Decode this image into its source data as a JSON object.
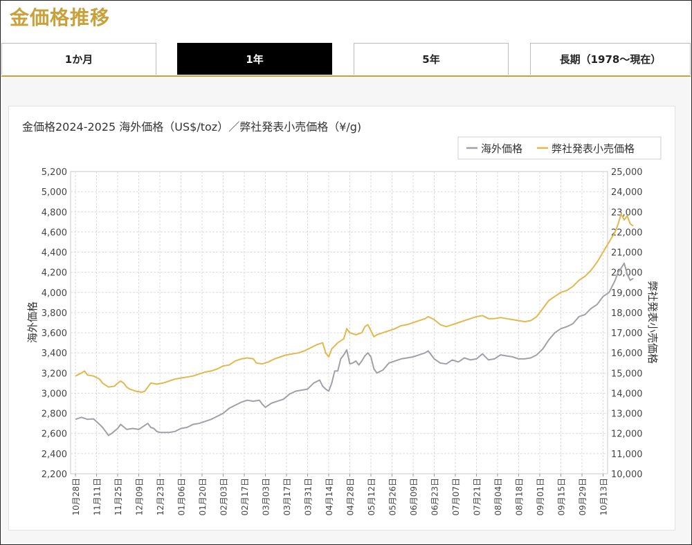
{
  "page": {
    "title": "金価格推移"
  },
  "tabs": [
    {
      "label": "1か月",
      "active": false
    },
    {
      "label": "1年",
      "active": true
    },
    {
      "label": "5年",
      "active": false
    },
    {
      "label": "長期（1978〜現在）",
      "active": false
    }
  ],
  "colors": {
    "accent": "#c9a13b",
    "overseas": "#a0a0a8",
    "retail": "#e2b84e",
    "grid": "#dcdcdc"
  },
  "chart_data": {
    "type": "line",
    "title": "金価格2024-2025 海外価格（US$/toz）／弊社発表小売価格（¥/g)",
    "legend": {
      "position": "top-right"
    },
    "grid": true,
    "x_ticks": [
      "10月28日",
      "11月11日",
      "11月25日",
      "12月09日",
      "12月23日",
      "01月06日",
      "01月20日",
      "02月03日",
      "02月17日",
      "03月03日",
      "03月17日",
      "03月31日",
      "04月14日",
      "04月28日",
      "05月12日",
      "05月26日",
      "06月09日",
      "06月23日",
      "07月07日",
      "07月21日",
      "08月04日",
      "08月18日",
      "09月01日",
      "09月15日",
      "09月29日",
      "10月13日"
    ],
    "y_left": {
      "label": "海外価格",
      "min": 2200,
      "max": 5200,
      "ticks": [
        "2,200",
        "2,400",
        "2,600",
        "2,800",
        "3,000",
        "3,200",
        "3,400",
        "3,600",
        "3,800",
        "4,000",
        "4,200",
        "4,400",
        "4,600",
        "4,800",
        "5,000",
        "5,200"
      ]
    },
    "y_right": {
      "label": "弊社発表小売価格",
      "min": 10000,
      "max": 25000,
      "ticks": [
        "10,000",
        "11,000",
        "12,000",
        "13,000",
        "14,000",
        "15,000",
        "16,000",
        "17,000",
        "18,000",
        "19,000",
        "20,000",
        "21,000",
        "22,000",
        "23,000",
        "24,000",
        "25,000"
      ]
    },
    "series": [
      {
        "name": "海外価格",
        "axis": "left",
        "points": [
          [
            0,
            2740
          ],
          [
            2,
            2760
          ],
          [
            4,
            2740
          ],
          [
            6,
            2745
          ],
          [
            8,
            2690
          ],
          [
            9,
            2660
          ],
          [
            10,
            2620
          ],
          [
            11,
            2580
          ],
          [
            12,
            2600
          ],
          [
            14,
            2650
          ],
          [
            15,
            2690
          ],
          [
            17,
            2640
          ],
          [
            19,
            2650
          ],
          [
            21,
            2640
          ],
          [
            23,
            2680
          ],
          [
            24,
            2700
          ],
          [
            25,
            2660
          ],
          [
            26,
            2650
          ],
          [
            27,
            2620
          ],
          [
            28,
            2610
          ],
          [
            31,
            2610
          ],
          [
            33,
            2620
          ],
          [
            35,
            2650
          ],
          [
            37,
            2660
          ],
          [
            39,
            2690
          ],
          [
            41,
            2700
          ],
          [
            43,
            2720
          ],
          [
            45,
            2740
          ],
          [
            47,
            2770
          ],
          [
            49,
            2800
          ],
          [
            51,
            2850
          ],
          [
            53,
            2880
          ],
          [
            55,
            2910
          ],
          [
            57,
            2930
          ],
          [
            59,
            2920
          ],
          [
            61,
            2930
          ],
          [
            62,
            2890
          ],
          [
            63,
            2860
          ],
          [
            65,
            2900
          ],
          [
            67,
            2920
          ],
          [
            69,
            2940
          ],
          [
            71,
            2990
          ],
          [
            73,
            3020
          ],
          [
            75,
            3030
          ],
          [
            77,
            3040
          ],
          [
            79,
            3100
          ],
          [
            81,
            3130
          ],
          [
            82,
            3070
          ],
          [
            83,
            3040
          ],
          [
            84,
            3020
          ],
          [
            85,
            3100
          ],
          [
            86,
            3220
          ],
          [
            87,
            3220
          ],
          [
            88,
            3340
          ],
          [
            89,
            3380
          ],
          [
            90,
            3430
          ],
          [
            91,
            3290
          ],
          [
            92,
            3300
          ],
          [
            93,
            3320
          ],
          [
            94,
            3280
          ],
          [
            95,
            3320
          ],
          [
            96,
            3370
          ],
          [
            97,
            3400
          ],
          [
            98,
            3360
          ],
          [
            99,
            3240
          ],
          [
            100,
            3200
          ],
          [
            102,
            3230
          ],
          [
            104,
            3300
          ],
          [
            106,
            3320
          ],
          [
            108,
            3340
          ],
          [
            110,
            3350
          ],
          [
            112,
            3360
          ],
          [
            114,
            3380
          ],
          [
            116,
            3400
          ],
          [
            117,
            3420
          ],
          [
            119,
            3340
          ],
          [
            121,
            3300
          ],
          [
            123,
            3290
          ],
          [
            125,
            3330
          ],
          [
            127,
            3310
          ],
          [
            129,
            3350
          ],
          [
            131,
            3330
          ],
          [
            133,
            3340
          ],
          [
            135,
            3390
          ],
          [
            137,
            3330
          ],
          [
            139,
            3340
          ],
          [
            141,
            3380
          ],
          [
            143,
            3370
          ],
          [
            145,
            3360
          ],
          [
            147,
            3340
          ],
          [
            149,
            3340
          ],
          [
            151,
            3350
          ],
          [
            153,
            3380
          ],
          [
            155,
            3440
          ],
          [
            157,
            3530
          ],
          [
            159,
            3600
          ],
          [
            161,
            3640
          ],
          [
            163,
            3660
          ],
          [
            165,
            3690
          ],
          [
            167,
            3760
          ],
          [
            169,
            3780
          ],
          [
            171,
            3840
          ],
          [
            173,
            3880
          ],
          [
            175,
            3960
          ],
          [
            177,
            4000
          ],
          [
            179,
            4120
          ],
          [
            180,
            4200
          ],
          [
            181,
            4240
          ],
          [
            182,
            4290
          ],
          [
            183,
            4180
          ],
          [
            184,
            4120
          ],
          [
            185,
            4140
          ]
        ]
      },
      {
        "name": "弊社発表小売価格",
        "axis": "right",
        "points": [
          [
            0,
            14850
          ],
          [
            2,
            15000
          ],
          [
            3,
            15100
          ],
          [
            4,
            14900
          ],
          [
            6,
            14850
          ],
          [
            8,
            14700
          ],
          [
            9,
            14500
          ],
          [
            11,
            14300
          ],
          [
            13,
            14350
          ],
          [
            14,
            14500
          ],
          [
            15,
            14600
          ],
          [
            16,
            14500
          ],
          [
            17,
            14300
          ],
          [
            18,
            14200
          ],
          [
            20,
            14100
          ],
          [
            22,
            14050
          ],
          [
            23,
            14100
          ],
          [
            24,
            14300
          ],
          [
            25,
            14500
          ],
          [
            27,
            14450
          ],
          [
            29,
            14500
          ],
          [
            31,
            14600
          ],
          [
            33,
            14700
          ],
          [
            35,
            14750
          ],
          [
            37,
            14800
          ],
          [
            39,
            14850
          ],
          [
            41,
            14950
          ],
          [
            43,
            15050
          ],
          [
            45,
            15100
          ],
          [
            47,
            15200
          ],
          [
            49,
            15350
          ],
          [
            51,
            15400
          ],
          [
            53,
            15600
          ],
          [
            55,
            15700
          ],
          [
            57,
            15750
          ],
          [
            59,
            15700
          ],
          [
            60,
            15500
          ],
          [
            62,
            15450
          ],
          [
            64,
            15550
          ],
          [
            66,
            15700
          ],
          [
            68,
            15800
          ],
          [
            70,
            15900
          ],
          [
            72,
            15950
          ],
          [
            74,
            16000
          ],
          [
            76,
            16100
          ],
          [
            78,
            16250
          ],
          [
            80,
            16400
          ],
          [
            82,
            16500
          ],
          [
            83,
            16000
          ],
          [
            84,
            15800
          ],
          [
            85,
            16200
          ],
          [
            87,
            16500
          ],
          [
            89,
            16700
          ],
          [
            90,
            17200
          ],
          [
            91,
            17000
          ],
          [
            93,
            16900
          ],
          [
            95,
            17000
          ],
          [
            96,
            17300
          ],
          [
            97,
            17400
          ],
          [
            98,
            17100
          ],
          [
            99,
            16800
          ],
          [
            100,
            16900
          ],
          [
            102,
            17000
          ],
          [
            104,
            17100
          ],
          [
            106,
            17200
          ],
          [
            108,
            17350
          ],
          [
            110,
            17400
          ],
          [
            112,
            17500
          ],
          [
            114,
            17600
          ],
          [
            116,
            17700
          ],
          [
            117,
            17800
          ],
          [
            119,
            17650
          ],
          [
            121,
            17400
          ],
          [
            123,
            17300
          ],
          [
            125,
            17400
          ],
          [
            127,
            17500
          ],
          [
            129,
            17600
          ],
          [
            131,
            17700
          ],
          [
            133,
            17800
          ],
          [
            135,
            17850
          ],
          [
            137,
            17700
          ],
          [
            139,
            17700
          ],
          [
            141,
            17750
          ],
          [
            143,
            17700
          ],
          [
            145,
            17650
          ],
          [
            147,
            17600
          ],
          [
            149,
            17550
          ],
          [
            151,
            17600
          ],
          [
            153,
            17800
          ],
          [
            155,
            18200
          ],
          [
            157,
            18600
          ],
          [
            159,
            18800
          ],
          [
            161,
            19000
          ],
          [
            163,
            19100
          ],
          [
            165,
            19300
          ],
          [
            167,
            19600
          ],
          [
            169,
            19800
          ],
          [
            171,
            20100
          ],
          [
            173,
            20500
          ],
          [
            175,
            21000
          ],
          [
            177,
            21500
          ],
          [
            179,
            22000
          ],
          [
            180,
            22400
          ],
          [
            181,
            22900
          ],
          [
            182,
            22600
          ],
          [
            183,
            22800
          ],
          [
            184,
            22400
          ],
          [
            185,
            22300
          ]
        ]
      }
    ]
  }
}
